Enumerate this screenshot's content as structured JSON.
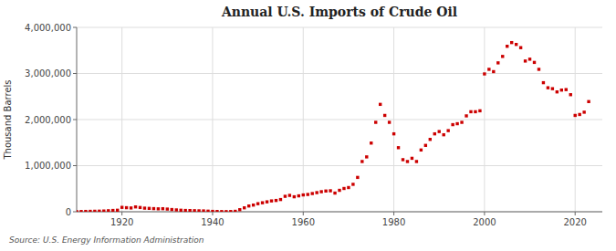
{
  "chart_data": {
    "type": "scatter",
    "title": "Annual U.S. Imports of Crude Oil",
    "ylabel": "Thousand Barrels",
    "source": "Source: U.S. Energy Information Administration",
    "color": "#cc0000",
    "marker": "square",
    "grid": true,
    "xlim": [
      1910,
      2026
    ],
    "ylim": [
      0,
      4000000
    ],
    "xticks": [
      1920,
      1940,
      1960,
      1980,
      2000,
      2020
    ],
    "yticks": [
      0,
      {
        "value": 1000000,
        "label": "1,000,000"
      },
      {
        "value": 2000000,
        "label": "2,000,000"
      },
      {
        "value": 3000000,
        "label": "3,000,000"
      },
      {
        "value": 4000000,
        "label": "4,000,000"
      }
    ],
    "x": [
      1910,
      1911,
      1912,
      1913,
      1914,
      1915,
      1916,
      1917,
      1918,
      1919,
      1920,
      1921,
      1922,
      1923,
      1924,
      1925,
      1926,
      1927,
      1928,
      1929,
      1930,
      1931,
      1932,
      1933,
      1934,
      1935,
      1936,
      1937,
      1938,
      1939,
      1940,
      1941,
      1942,
      1943,
      1944,
      1945,
      1946,
      1947,
      1948,
      1949,
      1950,
      1951,
      1952,
      1953,
      1954,
      1955,
      1956,
      1957,
      1958,
      1959,
      1960,
      1961,
      1962,
      1963,
      1964,
      1965,
      1966,
      1967,
      1968,
      1969,
      1970,
      1971,
      1972,
      1973,
      1974,
      1975,
      1976,
      1977,
      1978,
      1979,
      1980,
      1981,
      1982,
      1983,
      1984,
      1985,
      1986,
      1987,
      1988,
      1989,
      1990,
      1991,
      1992,
      1993,
      1994,
      1995,
      1996,
      1997,
      1998,
      1999,
      2000,
      2001,
      2002,
      2003,
      2004,
      2005,
      2006,
      2007,
      2008,
      2009,
      2010,
      2011,
      2012,
      2013,
      2014,
      2015,
      2016,
      2017,
      2018,
      2019,
      2020,
      2021,
      2022,
      2023
    ],
    "values": [
      3000,
      5000,
      7000,
      9000,
      11000,
      13000,
      16000,
      22000,
      28000,
      33000,
      95000,
      88000,
      82000,
      105000,
      92000,
      78000,
      73000,
      68000,
      63000,
      66000,
      58000,
      48000,
      40000,
      33000,
      28000,
      26000,
      23000,
      20000,
      18000,
      13000,
      8000,
      6000,
      4000,
      3000,
      5000,
      10000,
      45000,
      85000,
      125000,
      145000,
      175000,
      195000,
      215000,
      235000,
      245000,
      265000,
      335000,
      355000,
      325000,
      345000,
      365000,
      375000,
      395000,
      415000,
      435000,
      450000,
      455000,
      405000,
      465000,
      505000,
      525000,
      595000,
      745000,
      1090000,
      1190000,
      1490000,
      1940000,
      2330000,
      2090000,
      1940000,
      1690000,
      1390000,
      1130000,
      1090000,
      1160000,
      1090000,
      1340000,
      1440000,
      1570000,
      1690000,
      1740000,
      1670000,
      1760000,
      1890000,
      1910000,
      1940000,
      2080000,
      2170000,
      2170000,
      2190000,
      2990000,
      3090000,
      3040000,
      3230000,
      3370000,
      3590000,
      3670000,
      3630000,
      3560000,
      3270000,
      3310000,
      3240000,
      3090000,
      2800000,
      2690000,
      2670000,
      2600000,
      2640000,
      2650000,
      2540000,
      2090000,
      2110000,
      2160000,
      2390000
    ]
  }
}
